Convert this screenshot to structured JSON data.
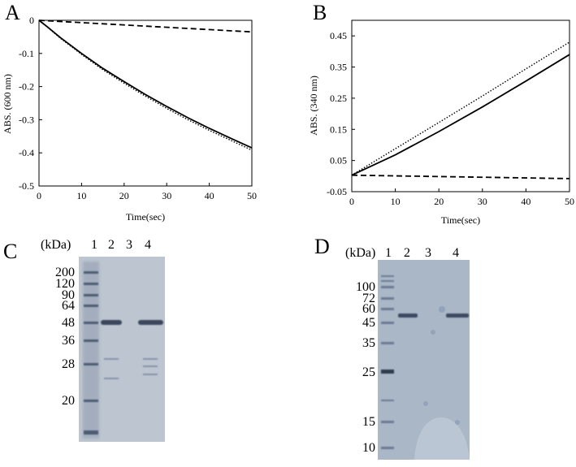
{
  "panels": {
    "a": "A",
    "b": "B",
    "c": "C",
    "d": "D"
  },
  "chart_data": [
    {
      "type": "line",
      "panel": "A",
      "xlabel": "Time(sec)",
      "ylabel": "ABS. (600 nm)",
      "xlim": [
        0,
        50
      ],
      "ylim": [
        -0.5,
        0
      ],
      "xticks": [
        "0",
        "10",
        "20",
        "30",
        "40",
        "50"
      ],
      "yticks": [
        "0",
        "-0.1",
        "-0.2",
        "-0.3",
        "-0.4",
        "-0.5"
      ],
      "grid": false,
      "series": [
        {
          "style": "solid",
          "x": [
            0,
            2,
            5,
            10,
            15,
            20,
            25,
            30,
            35,
            40,
            45,
            50
          ],
          "y": [
            0,
            -0.02,
            -0.052,
            -0.1,
            -0.145,
            -0.185,
            -0.224,
            -0.26,
            -0.294,
            -0.326,
            -0.356,
            -0.385
          ]
        },
        {
          "style": "dotted",
          "x": [
            0,
            2,
            5,
            10,
            15,
            20,
            25,
            30,
            35,
            40,
            45,
            50
          ],
          "y": [
            0,
            -0.021,
            -0.054,
            -0.103,
            -0.149,
            -0.19,
            -0.229,
            -0.266,
            -0.3,
            -0.332,
            -0.362,
            -0.392
          ]
        },
        {
          "style": "dashed",
          "x": [
            0,
            50
          ],
          "y": [
            0,
            -0.035
          ]
        }
      ]
    },
    {
      "type": "line",
      "panel": "B",
      "xlabel": "Time(sec)",
      "ylabel": "ABS. (340 nm)",
      "xlim": [
        0,
        50
      ],
      "ylim": [
        -0.05,
        0.5
      ],
      "xticks": [
        "0",
        "10",
        "20",
        "30",
        "40",
        "50"
      ],
      "yticks": [
        "0.45",
        "0.35",
        "0.25",
        "0.15",
        "0.05",
        "-0.05"
      ],
      "grid": false,
      "series": [
        {
          "style": "solid",
          "x": [
            0,
            10,
            20,
            30,
            40,
            50
          ],
          "y": [
            0.003,
            0.068,
            0.143,
            0.222,
            0.305,
            0.39
          ]
        },
        {
          "style": "dotted",
          "x": [
            0,
            10,
            20,
            30,
            40,
            50
          ],
          "y": [
            0.003,
            0.088,
            0.172,
            0.257,
            0.344,
            0.43
          ]
        },
        {
          "style": "dashed",
          "x": [
            0,
            50
          ],
          "y": [
            0.003,
            -0.008
          ]
        }
      ]
    }
  ],
  "gel_c": {
    "kda_label": "(kDa)",
    "lanes": [
      "1",
      "2",
      "3",
      "4"
    ],
    "markers": [
      "200",
      "120",
      "90",
      "64",
      "48",
      "36",
      "28",
      "20"
    ]
  },
  "gel_d": {
    "kda_label": "(kDa)",
    "lanes": [
      "1",
      "2",
      "3",
      "4"
    ],
    "markers": [
      "100",
      "72",
      "60",
      "45",
      "35",
      "25",
      "15",
      "10"
    ]
  },
  "colors": {
    "gel_background": "#b9c2cd",
    "gel_background_d": "#a9b6c6",
    "band": "#3c4a60"
  }
}
